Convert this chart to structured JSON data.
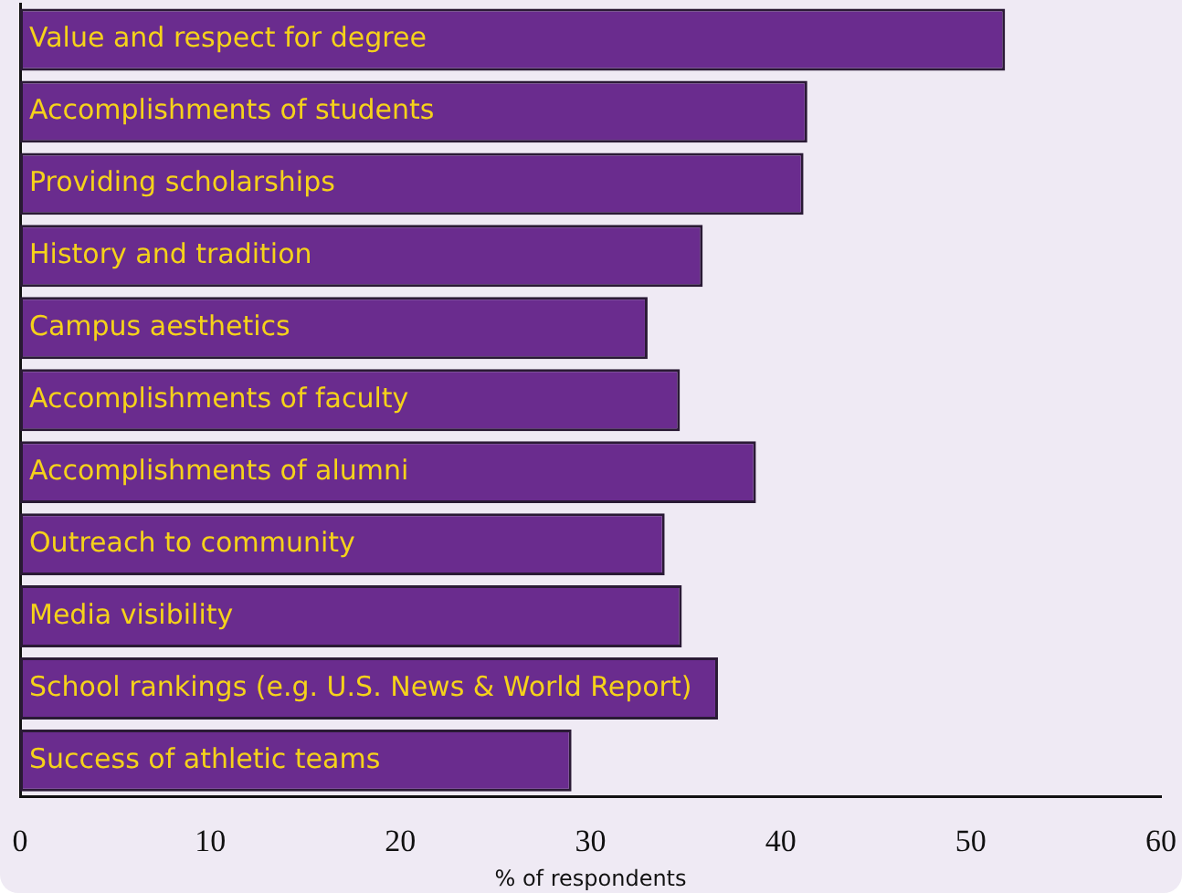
{
  "chart_data": {
    "type": "bar",
    "orientation": "horizontal",
    "xlabel": "% of respondents",
    "categories": [
      "Value and respect for degree",
      "Accomplishments of students",
      "Providing scholarships",
      "History and tradition",
      "Campus aesthetics",
      "Accomplishments of faculty",
      "Accomplishments of alumni",
      "Outreach to community",
      "Media visibility",
      "School rankings (e.g. U.S. News & World Report)",
      "Success of athletic teams"
    ],
    "values": [
      51.8,
      41.4,
      41.2,
      35.9,
      33.0,
      34.7,
      38.7,
      33.9,
      34.8,
      36.7,
      29.0
    ],
    "color": "#6a2c8e",
    "xlim": [
      0,
      60
    ],
    "xticks": [
      0,
      10,
      20,
      30,
      40,
      50,
      60
    ],
    "grid": false,
    "legend": false
  }
}
